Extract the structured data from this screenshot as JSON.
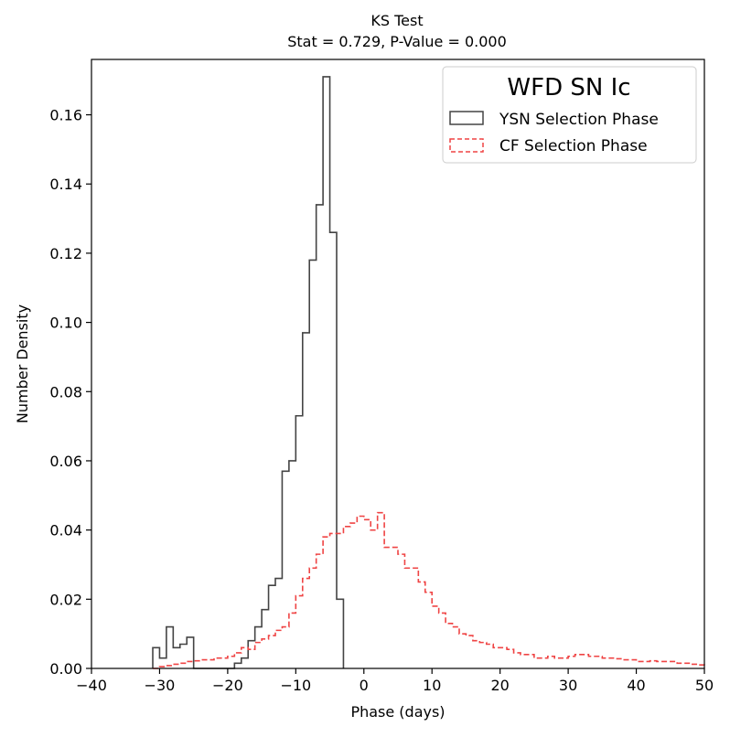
{
  "chart_data": {
    "type": "histogram",
    "title": "KS Test",
    "subtitle": "Stat = 0.729, P-Value = 0.000",
    "xlabel": "Phase (days)",
    "ylabel": "Number Density",
    "xlim": [
      -40,
      50
    ],
    "ylim": [
      0,
      0.176
    ],
    "x_ticks": [
      -40,
      -30,
      -20,
      -10,
      0,
      10,
      20,
      30,
      40,
      50
    ],
    "x_tick_labels": [
      "−40",
      "−30",
      "−20",
      "−10",
      "0",
      "10",
      "20",
      "30",
      "40",
      "50"
    ],
    "y_ticks": [
      0.0,
      0.02,
      0.04,
      0.06,
      0.08,
      0.1,
      0.12,
      0.14,
      0.16
    ],
    "y_tick_labels": [
      "0.00",
      "0.02",
      "0.04",
      "0.06",
      "0.08",
      "0.10",
      "0.12",
      "0.14",
      "0.16"
    ],
    "legend": {
      "title": "WFD SN Ic",
      "placement": "upper-right"
    },
    "series": [
      {
        "name": "YSN Selection Phase",
        "color": "#444444",
        "linestyle": "solid",
        "bin_edges": [
          -31,
          -30,
          -29,
          -28,
          -27,
          -26,
          -25,
          -24,
          -23,
          -22,
          -21,
          -20,
          -19,
          -18,
          -17,
          -16,
          -15,
          -14,
          -13,
          -12,
          -11,
          -10,
          -9,
          -8,
          -7,
          -6,
          -5,
          -4,
          -3
        ],
        "values": [
          0.006,
          0.003,
          0.012,
          0.006,
          0.007,
          0.009,
          0,
          0,
          0,
          0,
          0,
          0,
          0.0015,
          0.003,
          0.008,
          0.012,
          0.017,
          0.024,
          0.026,
          0.057,
          0.06,
          0.073,
          0.097,
          0.118,
          0.134,
          0.171,
          0.126,
          0.02
        ]
      },
      {
        "name": "CF Selection Phase",
        "color": "#ef4444",
        "linestyle": "dashed",
        "bin_edges": [
          -31,
          -30,
          -29,
          -28,
          -27,
          -26,
          -25,
          -24,
          -23,
          -22,
          -21,
          -20,
          -19,
          -18,
          -17,
          -16,
          -15,
          -14,
          -13,
          -12,
          -11,
          -10,
          -9,
          -8,
          -7,
          -6,
          -5,
          -4,
          -3,
          -2,
          -1,
          0,
          1,
          2,
          3,
          4,
          5,
          6,
          7,
          8,
          9,
          10,
          11,
          12,
          13,
          14,
          15,
          16,
          17,
          18,
          19,
          20,
          21,
          22,
          23,
          24,
          25,
          26,
          27,
          28,
          29,
          30,
          31,
          32,
          33,
          34,
          35,
          36,
          37,
          38,
          39,
          40,
          41,
          42,
          43,
          44,
          45,
          46,
          47,
          48,
          49,
          50
        ],
        "values": [
          0,
          0.0005,
          0.0008,
          0.0012,
          0.0015,
          0.002,
          0.0022,
          0.0025,
          0.0025,
          0.003,
          0.003,
          0.0035,
          0.0045,
          0.006,
          0.0055,
          0.0075,
          0.0085,
          0.0095,
          0.011,
          0.012,
          0.016,
          0.021,
          0.026,
          0.029,
          0.033,
          0.038,
          0.039,
          0.039,
          0.041,
          0.042,
          0.044,
          0.043,
          0.04,
          0.045,
          0.035,
          0.035,
          0.033,
          0.029,
          0.029,
          0.025,
          0.022,
          0.018,
          0.016,
          0.013,
          0.012,
          0.01,
          0.0095,
          0.008,
          0.0075,
          0.007,
          0.006,
          0.006,
          0.0055,
          0.0045,
          0.004,
          0.004,
          0.003,
          0.003,
          0.0035,
          0.003,
          0.003,
          0.0035,
          0.004,
          0.004,
          0.0035,
          0.0035,
          0.003,
          0.003,
          0.0028,
          0.0025,
          0.0025,
          0.002,
          0.002,
          0.0022,
          0.002,
          0.002,
          0.002,
          0.0015,
          0.0015,
          0.0012,
          0.001
        ]
      }
    ]
  }
}
